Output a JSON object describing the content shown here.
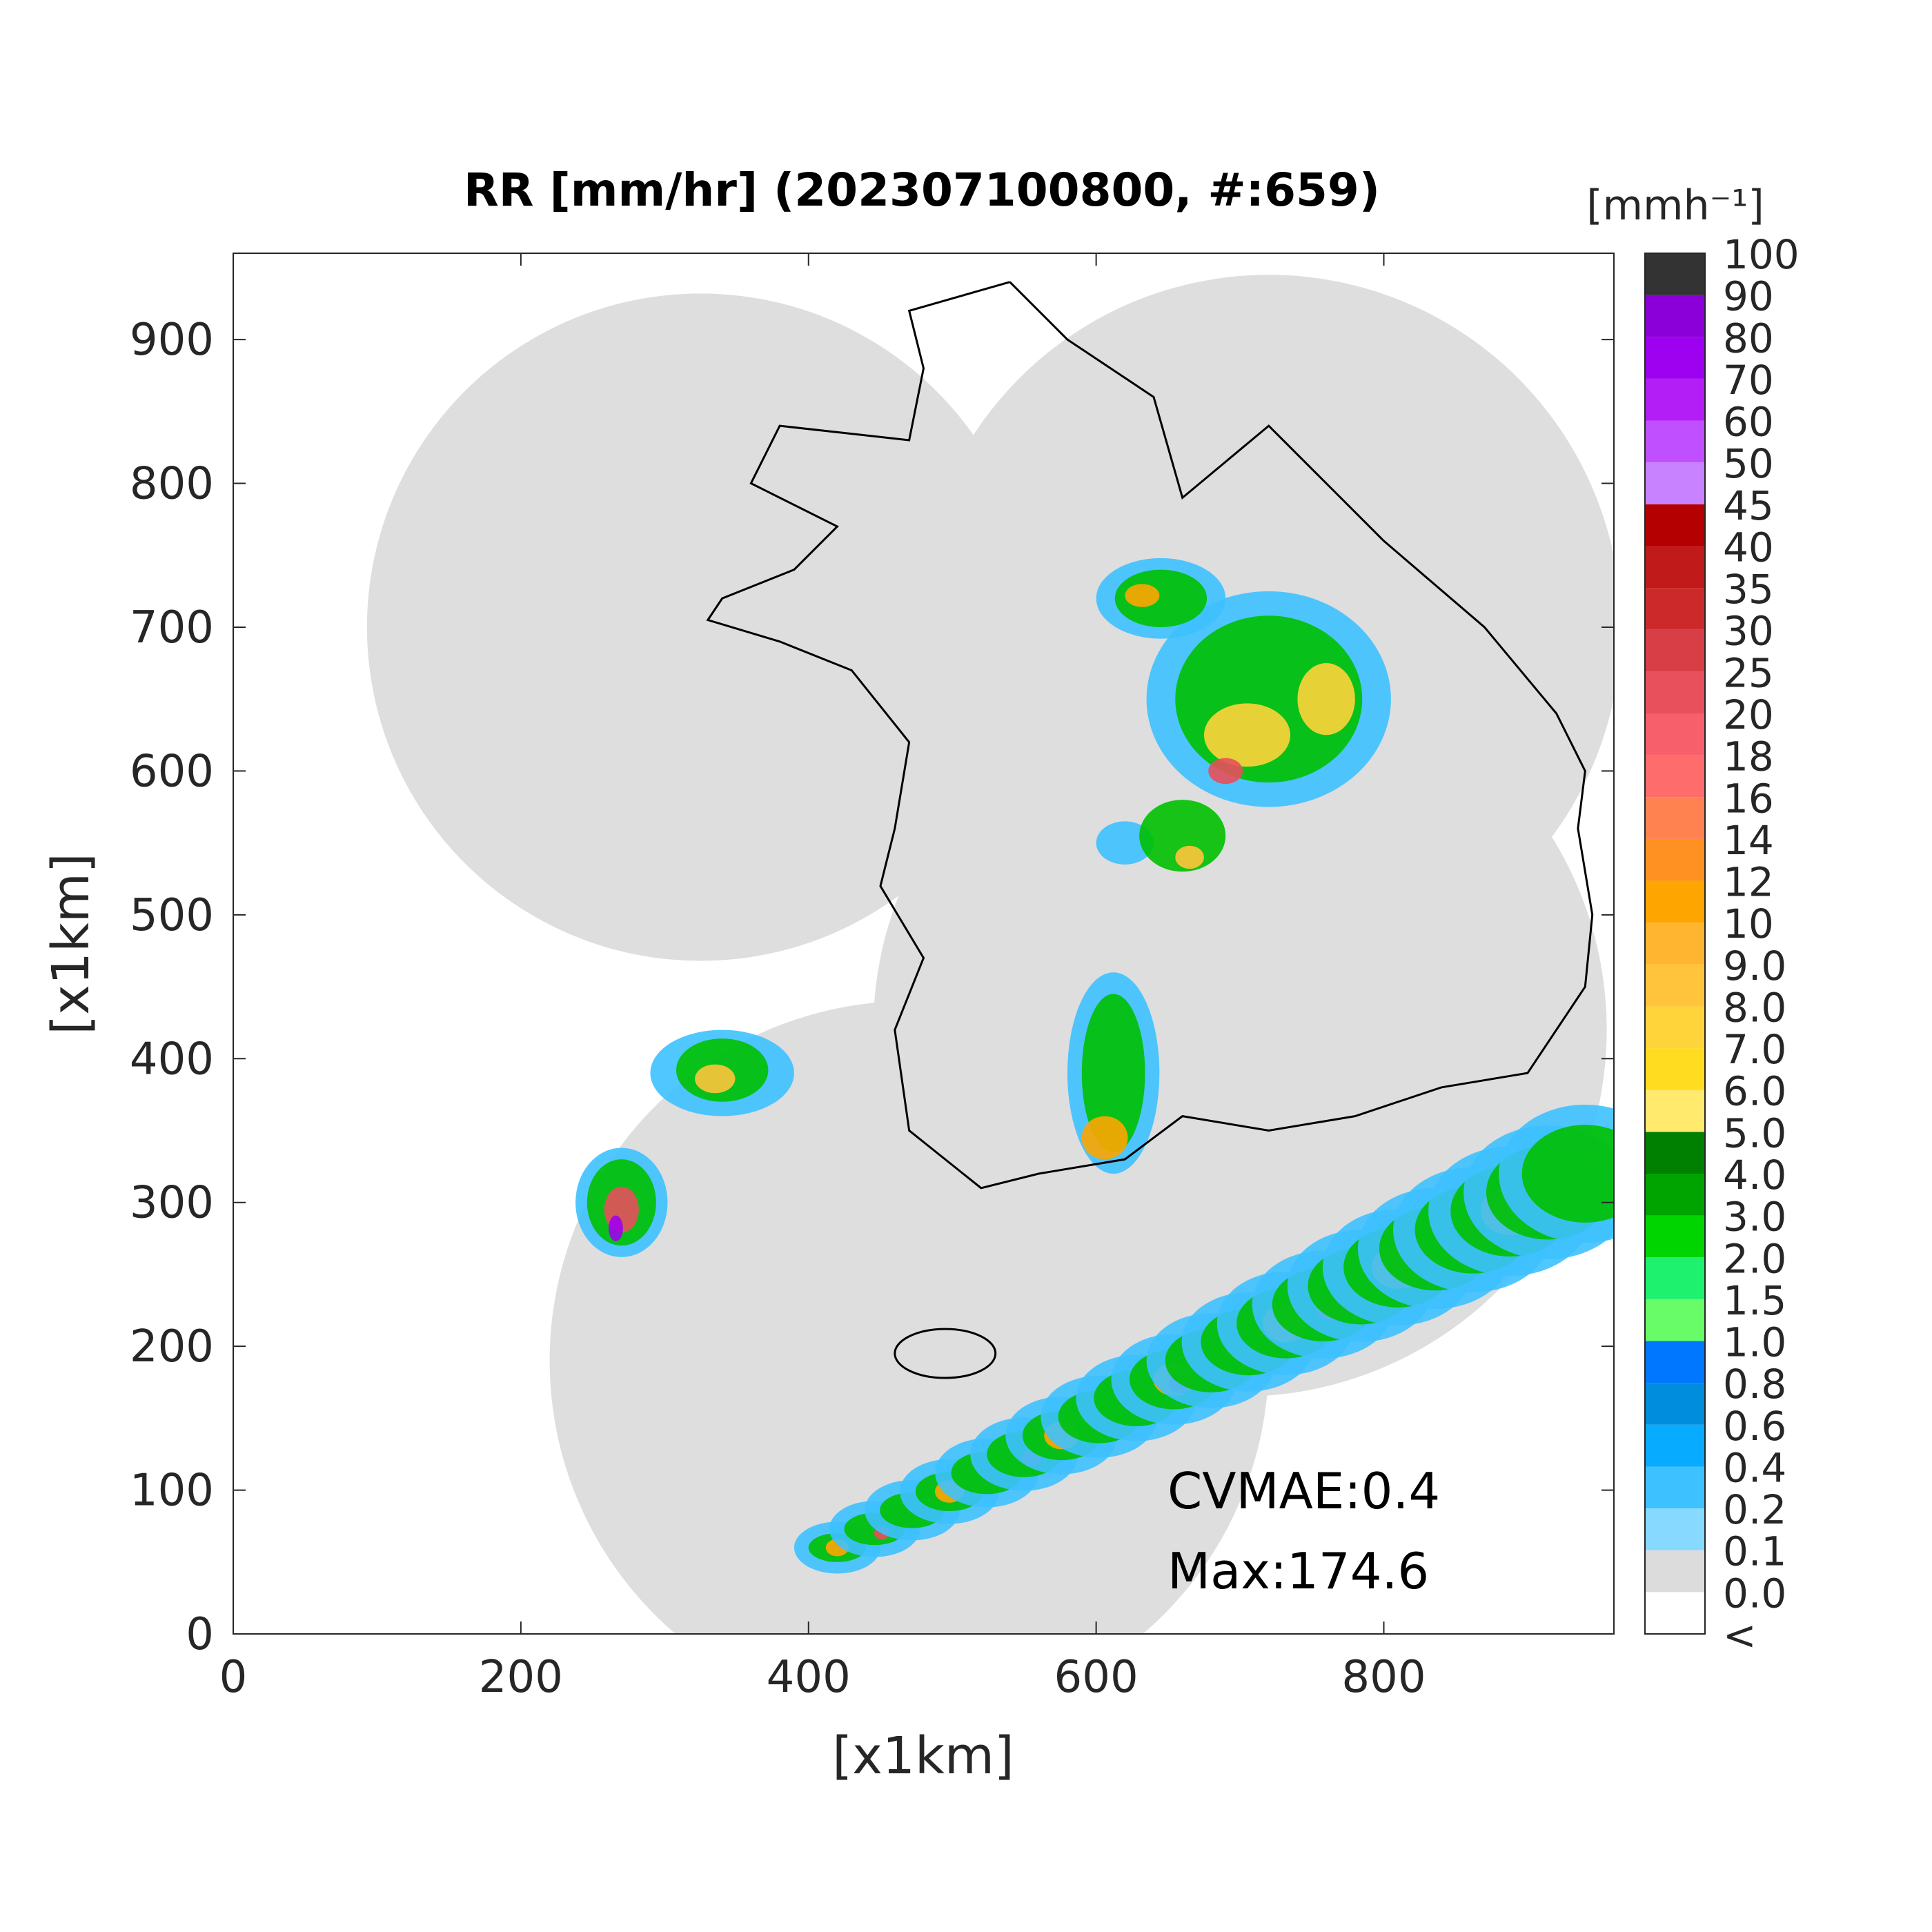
{
  "chart_data": {
    "type": "radar-map",
    "title": "RR [mm/hr] (202307100800, #:659)",
    "xlabel": "[x1km]",
    "ylabel": "[x1km]",
    "xlim": [
      0,
      960
    ],
    "ylim": [
      0,
      960
    ],
    "xticks": [
      0,
      200,
      400,
      600,
      800
    ],
    "yticks": [
      0,
      100,
      200,
      300,
      400,
      500,
      600,
      700,
      800,
      900
    ],
    "annotations": [
      "CVMAE:0.4",
      "Max:174.6"
    ],
    "colorbar_unit": "[mmh⁻¹]",
    "colorbar_labels": [
      "<",
      "0.0",
      "0.1",
      "0.2",
      "0.4",
      "0.6",
      "0.8",
      "1.0",
      "1.5",
      "2.0",
      "3.0",
      "4.0",
      "5.0",
      "6.0",
      "7.0",
      "8.0",
      "9.0",
      "10",
      "12",
      "14",
      "16",
      "18",
      "20",
      "25",
      "30",
      "35",
      "40",
      "45",
      "50",
      "60",
      "70",
      "80",
      "90",
      "100"
    ],
    "colorbar_colors": [
      "#ffffff",
      "#dcdcdc",
      "#87d9ff",
      "#3ec1ff",
      "#07abff",
      "#008dde",
      "#0077ff",
      "#69fc69",
      "#1ef16e",
      "#00d500",
      "#00a400",
      "#008000",
      "#ffea6e",
      "#ffdc1f",
      "#ffd43a",
      "#ffc43b",
      "#ffb52f",
      "#ffa500",
      "#ff9123",
      "#ff8250",
      "#ff6c6c",
      "#f7606a",
      "#e8505b",
      "#d73e46",
      "#cc2a2a",
      "#c01a1a",
      "#b40000",
      "#c882ff",
      "#c04fff",
      "#b21ef5",
      "#9e00f0",
      "#8b00d8",
      "#333333"
    ]
  }
}
